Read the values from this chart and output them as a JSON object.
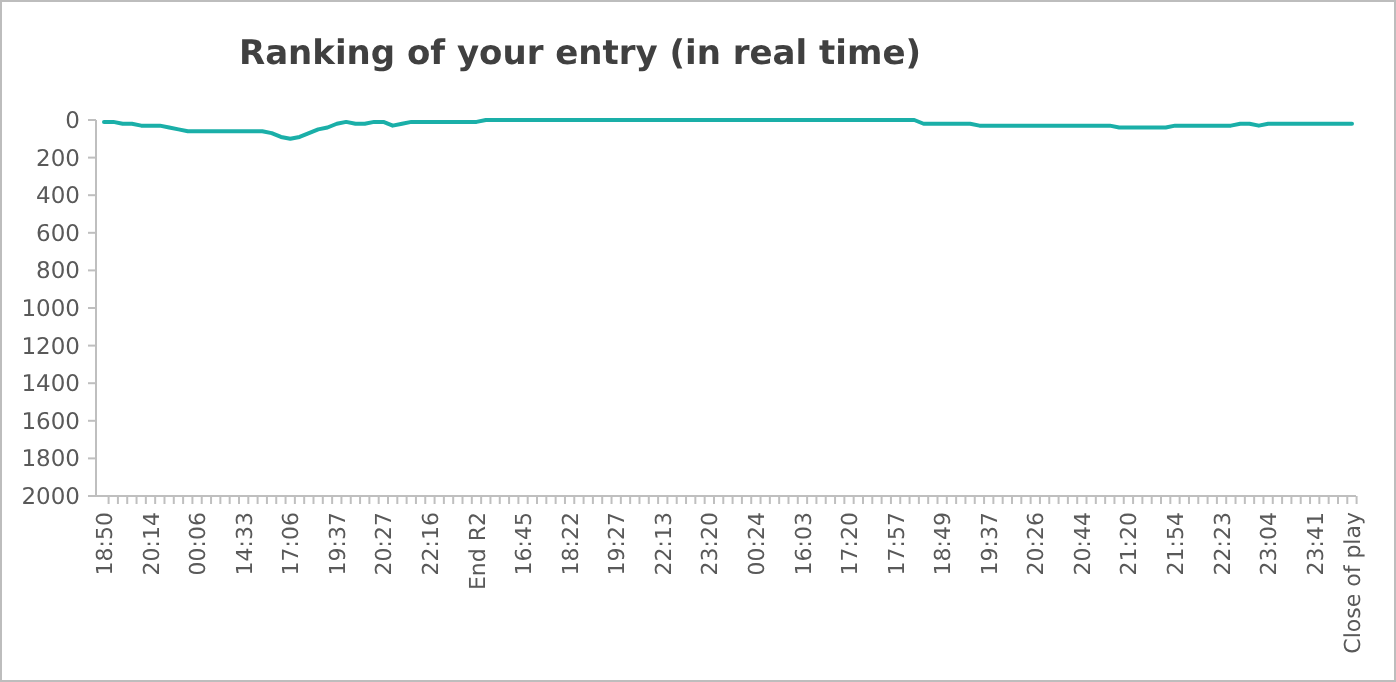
{
  "chart_data": {
    "type": "line",
    "title": "Ranking of your entry (in real time)",
    "categories": [
      "18:50",
      null,
      null,
      null,
      null,
      "20:14",
      null,
      null,
      null,
      null,
      "00:06",
      null,
      null,
      null,
      null,
      "14:33",
      null,
      null,
      null,
      null,
      "17:06",
      null,
      null,
      null,
      null,
      "19:37",
      null,
      null,
      null,
      null,
      "20:27",
      null,
      null,
      null,
      null,
      "22:16",
      null,
      null,
      null,
      null,
      "End R2",
      null,
      null,
      null,
      null,
      "16:45",
      null,
      null,
      null,
      null,
      "18:22",
      null,
      null,
      null,
      null,
      "19:27",
      null,
      null,
      null,
      null,
      "22:13",
      null,
      null,
      null,
      null,
      "23:20",
      null,
      null,
      null,
      null,
      "00:24",
      null,
      null,
      null,
      null,
      "16:03",
      null,
      null,
      null,
      null,
      "17:20",
      null,
      null,
      null,
      null,
      "17:57",
      null,
      null,
      null,
      null,
      "18:49",
      null,
      null,
      null,
      null,
      "19:37",
      null,
      null,
      null,
      null,
      "20:26",
      null,
      null,
      null,
      null,
      "20:44",
      null,
      null,
      null,
      null,
      "21:20",
      null,
      null,
      null,
      null,
      "21:54",
      null,
      null,
      null,
      null,
      "22:23",
      null,
      null,
      null,
      null,
      "23:04",
      null,
      null,
      null,
      null,
      "23:41",
      null,
      null,
      null,
      "Close of play"
    ],
    "series": [
      {
        "color": "#1aafa8",
        "values": [
          10,
          10,
          20,
          20,
          30,
          30,
          30,
          40,
          50,
          60,
          60,
          60,
          60,
          60,
          60,
          60,
          60,
          60,
          70,
          90,
          100,
          90,
          70,
          50,
          40,
          20,
          10,
          20,
          20,
          10,
          10,
          30,
          20,
          10,
          10,
          10,
          10,
          10,
          10,
          10,
          10,
          0,
          0,
          0,
          0,
          0,
          0,
          0,
          0,
          0,
          0,
          0,
          0,
          0,
          0,
          0,
          0,
          0,
          0,
          0,
          0,
          0,
          0,
          0,
          0,
          0,
          0,
          0,
          0,
          0,
          0,
          0,
          0,
          0,
          0,
          0,
          0,
          0,
          0,
          0,
          0,
          0,
          0,
          0,
          0,
          0,
          0,
          0,
          20,
          20,
          20,
          20,
          20,
          20,
          30,
          30,
          30,
          30,
          30,
          30,
          30,
          30,
          30,
          30,
          30,
          30,
          30,
          30,
          30,
          40,
          40,
          40,
          40,
          40,
          40,
          30,
          30,
          30,
          30,
          30,
          30,
          30,
          20,
          20,
          30,
          20,
          20,
          20,
          20,
          20,
          20,
          20,
          20,
          20,
          20
        ]
      }
    ],
    "ylim": [
      2000,
      0
    ],
    "yticks": [
      0,
      200,
      400,
      600,
      800,
      1000,
      1200,
      1400,
      1600,
      1800,
      2000
    ],
    "grid": false,
    "line_style": "solid",
    "marker": "none"
  }
}
